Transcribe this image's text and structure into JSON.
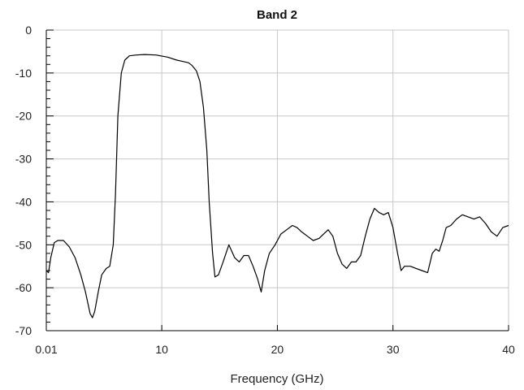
{
  "chart_data": {
    "type": "line",
    "title": "Band 2",
    "xlabel": "Frequency (GHz)",
    "ylabel": "",
    "xlim": [
      0.01,
      40
    ],
    "ylim": [
      -70,
      0
    ],
    "grid": true,
    "x_ticks": [
      0.01,
      10,
      20,
      30,
      40
    ],
    "x_tick_labels": [
      "0.01",
      "10",
      "20",
      "30",
      "40"
    ],
    "y_ticks": [
      0,
      -10,
      -20,
      -30,
      -40,
      -50,
      -60,
      -70
    ],
    "y_tick_labels": [
      "0",
      "-10",
      "-20",
      "-30",
      "-40",
      "-50",
      "-60",
      "-70"
    ],
    "line_color": "#000000",
    "grid_color": "#c8c8c8",
    "series": [
      {
        "name": "",
        "x": [
          0.01,
          0.2,
          0.4,
          0.7,
          1.0,
          1.5,
          2.0,
          2.5,
          3.0,
          3.4,
          3.8,
          4.0,
          4.2,
          4.5,
          4.8,
          5.2,
          5.5,
          5.8,
          6.0,
          6.2,
          6.5,
          6.8,
          7.2,
          7.8,
          8.5,
          9.5,
          10.5,
          11.3,
          11.8,
          12.3,
          12.6,
          13.0,
          13.3,
          13.6,
          13.9,
          14.1,
          14.4,
          14.6,
          14.9,
          15.3,
          15.8,
          16.3,
          16.7,
          17.1,
          17.5,
          17.9,
          18.3,
          18.6,
          18.9,
          19.3,
          19.8,
          20.3,
          20.8,
          21.3,
          21.7,
          22.1,
          22.6,
          23.1,
          23.6,
          24.0,
          24.4,
          24.8,
          25.2,
          25.6,
          26.0,
          26.4,
          26.8,
          27.2,
          27.6,
          28.0,
          28.4,
          28.8,
          29.2,
          29.6,
          30.0,
          30.4,
          30.7,
          31.0,
          31.5,
          32.0,
          32.5,
          33.0,
          33.4,
          33.7,
          34.0,
          34.3,
          34.6,
          35.0,
          35.5,
          36.0,
          36.5,
          37.0,
          37.5,
          38.0,
          38.5,
          39.0,
          39.5,
          40.0
        ],
        "values": [
          -56,
          -56.5,
          -53,
          -49.5,
          -49,
          -49,
          -50.5,
          -53,
          -57,
          -61,
          -66,
          -67,
          -65.5,
          -61,
          -57,
          -55.5,
          -55,
          -50,
          -38,
          -20,
          -10,
          -7,
          -6,
          -5.8,
          -5.7,
          -5.8,
          -6.3,
          -7,
          -7.3,
          -7.6,
          -8.2,
          -9.5,
          -12,
          -18,
          -28,
          -40,
          -52,
          -57.5,
          -57,
          -54,
          -50,
          -53,
          -54,
          -52.5,
          -52.5,
          -55,
          -58,
          -61,
          -56,
          -52,
          -50,
          -47.5,
          -46.5,
          -45.5,
          -46,
          -47,
          -48,
          -49,
          -48.5,
          -47.5,
          -46.5,
          -48,
          -52,
          -54.5,
          -55.5,
          -54,
          -54,
          -52.5,
          -48,
          -44,
          -41.5,
          -42.5,
          -43,
          -42.5,
          -46,
          -52,
          -56,
          -55,
          -55,
          -55.5,
          -56,
          -56.5,
          -52,
          -51,
          -51.5,
          -49,
          -46,
          -45.5,
          -44,
          -43,
          -43.5,
          -44,
          -43.5,
          -45,
          -47,
          -48,
          -46,
          -45.5
        ]
      }
    ]
  }
}
